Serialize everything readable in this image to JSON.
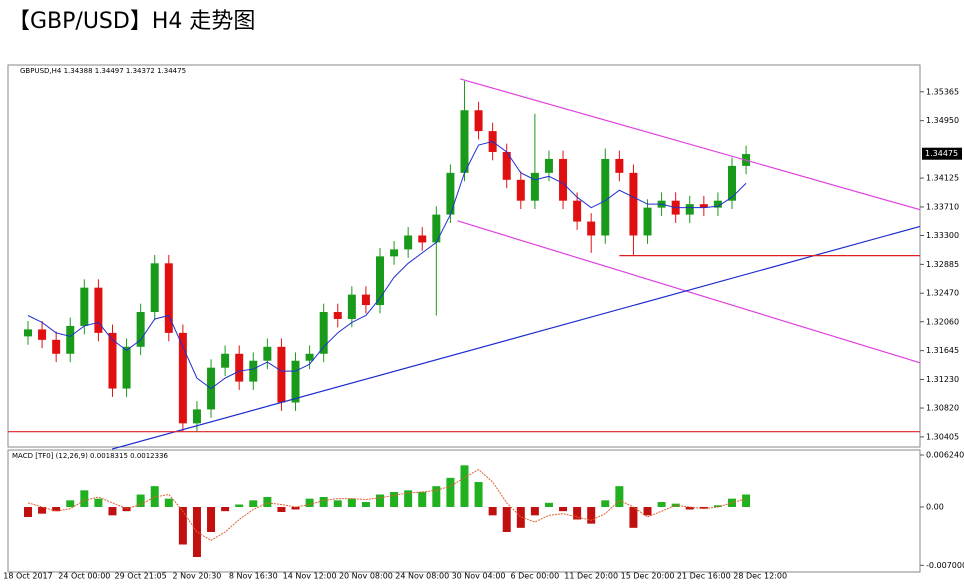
{
  "chart_data": [
    {
      "type": "candlestick",
      "title": "【GBP/USD】H4 走势图",
      "subtitle": "GBPUSD,H4  1.34388 1.34497 1.34372 1.34475",
      "categories": [
        "18 Oct 2017",
        null,
        null,
        null,
        "24 Oct 00:00",
        null,
        null,
        null,
        "29 Oct 21:05",
        null,
        null,
        null,
        "2 Nov 20:30",
        null,
        null,
        null,
        "8 Nov 16:30",
        null,
        null,
        null,
        "14 Nov 12:00",
        null,
        null,
        null,
        "20 Nov 08:00",
        null,
        null,
        null,
        "24 Nov 08:00",
        null,
        null,
        null,
        "30 Nov 04:00",
        null,
        null,
        null,
        "6 Dec 00:00",
        null,
        null,
        null,
        "11 Dec 20:00",
        null,
        null,
        null,
        "15 Dec 20:00",
        null,
        null,
        null,
        "21 Dec 16:00",
        null,
        null,
        null,
        "28 Dec 12:00"
      ],
      "open": [
        1.3185,
        1.3195,
        1.318,
        1.316,
        1.32,
        1.3255,
        1.319,
        1.311,
        1.317,
        1.322,
        1.329,
        1.319,
        1.306,
        1.308,
        1.314,
        1.316,
        1.312,
        1.315,
        1.317,
        1.309,
        1.315,
        1.316,
        1.322,
        1.321,
        1.3245,
        1.323,
        1.33,
        1.331,
        1.333,
        1.332,
        1.336,
        1.342,
        1.351,
        1.348,
        1.345,
        1.341,
        1.338,
        1.342,
        1.344,
        1.338,
        1.335,
        1.333,
        1.344,
        1.342,
        1.333,
        1.337,
        1.338,
        1.336,
        1.3375,
        1.337,
        1.338,
        1.343,
        null
      ],
      "high": [
        1.3207,
        1.3207,
        1.3192,
        1.3212,
        1.3267,
        1.3267,
        1.3202,
        1.3182,
        1.3232,
        1.3302,
        1.3302,
        1.3202,
        1.3092,
        1.3152,
        1.3172,
        1.3172,
        1.3162,
        1.3182,
        1.3182,
        1.3162,
        1.3172,
        1.3232,
        1.3232,
        1.3257,
        1.3257,
        1.3312,
        1.3322,
        1.3342,
        1.3342,
        1.3372,
        1.3432,
        1.3552,
        1.3522,
        1.3492,
        1.3462,
        1.3422,
        1.3505,
        1.3452,
        1.3452,
        1.3392,
        1.3362,
        1.3455,
        1.3452,
        1.3432,
        1.3382,
        1.3392,
        1.3392,
        1.3387,
        1.3387,
        1.3392,
        1.3442,
        1.3459,
        null
      ],
      "low": [
        1.3173,
        1.3168,
        1.3148,
        1.3148,
        1.3188,
        1.3178,
        1.3098,
        1.3098,
        1.3158,
        1.3208,
        1.3178,
        1.3048,
        1.3048,
        1.3068,
        1.3128,
        1.3108,
        1.3108,
        1.3138,
        1.3078,
        1.3078,
        1.3138,
        1.3148,
        1.3198,
        1.3198,
        1.3218,
        1.3218,
        1.3288,
        1.3298,
        1.3308,
        1.3215,
        1.3348,
        1.3408,
        1.3468,
        1.3438,
        1.3398,
        1.3368,
        1.3368,
        1.3408,
        1.3368,
        1.3338,
        1.3305,
        1.3318,
        1.3408,
        1.3302,
        1.3318,
        1.3358,
        1.3348,
        1.3348,
        1.3358,
        1.3358,
        1.3368,
        1.3418,
        null
      ],
      "close": [
        1.3195,
        1.318,
        1.316,
        1.32,
        1.3255,
        1.319,
        1.311,
        1.317,
        1.322,
        1.329,
        1.319,
        1.306,
        1.308,
        1.314,
        1.316,
        1.312,
        1.315,
        1.317,
        1.309,
        1.315,
        1.316,
        1.322,
        1.321,
        1.3245,
        1.323,
        1.33,
        1.331,
        1.333,
        1.332,
        1.336,
        1.342,
        1.351,
        1.348,
        1.345,
        1.341,
        1.338,
        1.342,
        1.344,
        1.338,
        1.335,
        1.333,
        1.344,
        1.342,
        1.333,
        1.337,
        1.338,
        1.336,
        1.3375,
        1.337,
        1.338,
        1.343,
        1.3447,
        null
      ],
      "up_color": "#1a9a1a",
      "down_color": "#e01010",
      "ma": {
        "color": "#2030d0",
        "values": [
          1.3215,
          1.3205,
          1.319,
          1.3185,
          1.32,
          1.3205,
          1.318,
          1.3165,
          1.318,
          1.321,
          1.3215,
          1.317,
          1.3125,
          1.311,
          1.3125,
          1.3135,
          1.3138,
          1.3148,
          1.3135,
          1.3135,
          1.3145,
          1.317,
          1.319,
          1.3205,
          1.3215,
          1.324,
          1.327,
          1.329,
          1.3305,
          1.332,
          1.336,
          1.342,
          1.346,
          1.3465,
          1.345,
          1.342,
          1.341,
          1.3415,
          1.3405,
          1.3385,
          1.337,
          1.338,
          1.3395,
          1.3385,
          1.3375,
          1.3375,
          1.337,
          1.337,
          1.337,
          1.3372,
          1.3385,
          1.3405,
          null
        ]
      },
      "trendlines": [
        {
          "color": "#e040e0",
          "x": [
            30.7,
            63.35
          ],
          "y": [
            1.3555,
            1.3367
          ]
        },
        {
          "color": "#e040e0",
          "x": [
            30.5,
            63.35
          ],
          "y": [
            1.3351,
            1.3147
          ]
        },
        {
          "color": "#1a2ad0",
          "x": [
            5.97,
            63.35
          ],
          "y": [
            1.3023,
            1.3343
          ]
        },
        {
          "color": "#e02020",
          "x": [
            42,
            63.35
          ],
          "y": [
            1.3301,
            1.3301
          ]
        },
        {
          "color": "#e02020",
          "x": [
            -1.42,
            63.35
          ],
          "y": [
            1.3048,
            1.3048
          ]
        }
      ],
      "last_price": 1.34475,
      "ylim": [
        1.3026,
        1.3575
      ],
      "yticks": [
        1.35365,
        {
          "value": 1.3495,
          "label": "1.34950"
        },
        1.34125,
        {
          "value": 1.3371,
          "label": "1.33710"
        },
        {
          "value": 1.333,
          "label": "1.33300"
        },
        1.32885,
        {
          "value": 1.3247,
          "label": "1.32470"
        },
        {
          "value": 1.3206,
          "label": "1.32060"
        },
        1.31645,
        {
          "value": 1.3123,
          "label": "1.31230"
        },
        {
          "value": 1.3082,
          "label": "1.30820"
        },
        1.30405
      ]
    },
    {
      "type": "macd",
      "title": "MACD [TF0] (12,26,9) 0.0018315 0.0012336",
      "histogram": {
        "up_color": "#20b020",
        "down_color": "#c01010",
        "values": [
          -0.0012,
          -0.0008,
          -0.0005,
          0.0008,
          0.002,
          0.001,
          -0.001,
          -0.0005,
          0.0015,
          0.0025,
          0.001,
          -0.0045,
          -0.006,
          -0.003,
          -0.0005,
          0.0003,
          0.0008,
          0.0012,
          -0.0006,
          -0.0003,
          0.001,
          0.0012,
          0.0008,
          0.001,
          0.0006,
          0.0015,
          0.0018,
          0.002,
          0.0018,
          0.0025,
          0.0035,
          0.005,
          0.003,
          -0.001,
          -0.003,
          -0.0025,
          -0.001,
          0.0005,
          -0.0005,
          -0.0015,
          -0.002,
          0.0008,
          0.0025,
          -0.0025,
          -0.001,
          0.0006,
          0.0004,
          -0.0003,
          -0.0002,
          0.0002,
          0.001,
          0.0015,
          null
        ]
      },
      "signal": {
        "color": "#e06030",
        "values": [
          0.0005,
          0,
          -0.0005,
          -0.0002,
          0.0008,
          0.0012,
          0.0005,
          -0.0002,
          0.0003,
          0.0012,
          0.0015,
          -0.0005,
          -0.003,
          -0.004,
          -0.003,
          -0.0015,
          -0.0003,
          0.0005,
          0.0003,
          0,
          0.0003,
          0.0008,
          0.001,
          0.001,
          0.0009,
          0.0011,
          0.0014,
          0.0017,
          0.0018,
          0.002,
          0.0025,
          0.0035,
          0.0045,
          0.003,
          0.0005,
          -0.0012,
          -0.0018,
          -0.001,
          -0.0008,
          -0.0012,
          -0.0016,
          -0.0008,
          0.0008,
          0,
          -0.0012,
          -0.0005,
          0.0002,
          0,
          -0.0002,
          0,
          0.0005,
          0.001,
          null
        ]
      },
      "ylim": [
        -0.0078,
        0.00684
      ],
      "yticks": [
        {
          "value": 0.00624,
          "label": "0.006240"
        },
        {
          "value": 0,
          "label": "0.00"
        },
        {
          "value": -0.007,
          "label": "-0.007000"
        }
      ]
    }
  ]
}
